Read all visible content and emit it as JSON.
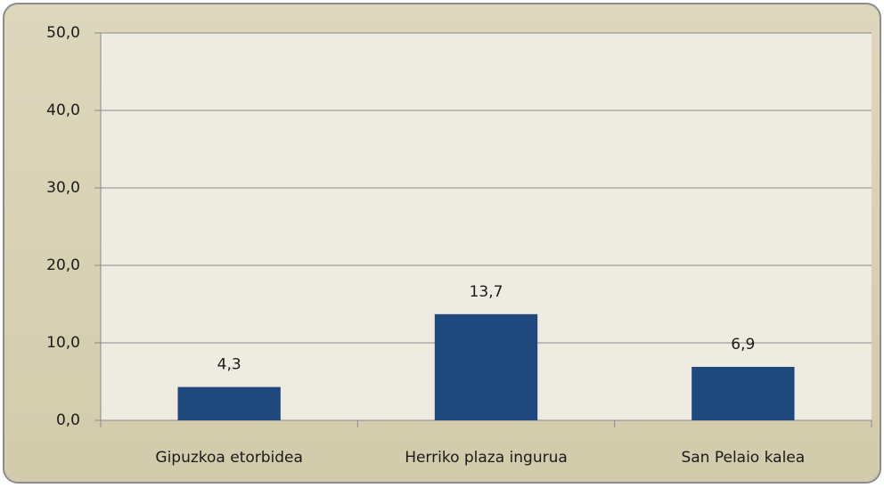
{
  "chart_data": {
    "type": "bar",
    "categories": [
      "Gipuzkoa etorbidea",
      "Herriko plaza ingurua",
      "San Pelaio kalea"
    ],
    "values": [
      4.3,
      13.7,
      6.9
    ],
    "value_labels": [
      "4,3",
      "13,7",
      "6,9"
    ],
    "color": "#1f497d",
    "ylim": [
      0,
      50
    ],
    "yticks": [
      {
        "value": 0,
        "label": "0,0"
      },
      {
        "value": 10,
        "label": "10,0"
      },
      {
        "value": 20,
        "label": "20,0"
      },
      {
        "value": 30,
        "label": "30,0"
      },
      {
        "value": 40,
        "label": "40,0"
      },
      {
        "value": 50,
        "label": "50,0"
      }
    ],
    "grid": true
  }
}
